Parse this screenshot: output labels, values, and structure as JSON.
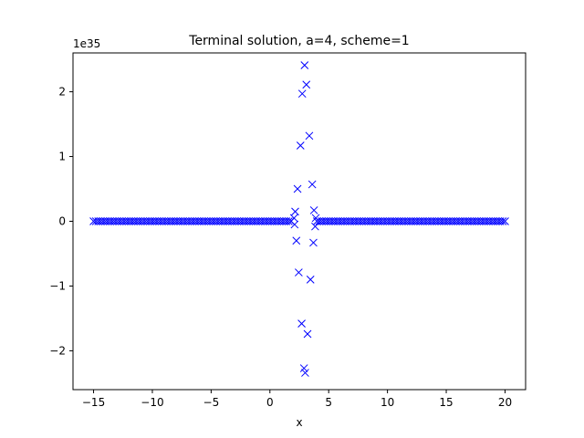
{
  "chart_data": {
    "type": "scatter",
    "title": "Terminal solution, a=4, scheme=1",
    "xlabel": "x",
    "ylabel": "",
    "offset_label": "1e35",
    "y_scale": 1e+35,
    "marker": "x",
    "color": "#0000ff",
    "xlim": [
      -16.75,
      21.75
    ],
    "ylim": [
      -2.6,
      2.6
    ],
    "grid": false,
    "legend": "none",
    "xticks": [
      -15,
      -10,
      -5,
      0,
      5,
      10,
      15,
      20
    ],
    "xtick_labels": [
      "−15",
      "−10",
      "−5",
      "0",
      "5",
      "10",
      "15",
      "20"
    ],
    "yticks": [
      -2,
      -1,
      0,
      1,
      2
    ],
    "ytick_labels": [
      "−2",
      "−1",
      "0",
      "1",
      "2"
    ],
    "baseline": {
      "left": {
        "x_start": -15.0,
        "x_end": 1.9,
        "y": 0
      },
      "right": {
        "x_start": 4.0,
        "x_end": 20.0,
        "y": 0
      }
    },
    "points": [
      {
        "x": 2.95,
        "y": 2.41
      },
      {
        "x": 3.1,
        "y": 2.11
      },
      {
        "x": 2.75,
        "y": 1.97
      },
      {
        "x": 3.35,
        "y": 1.32
      },
      {
        "x": 2.6,
        "y": 1.17
      },
      {
        "x": 3.6,
        "y": 0.57
      },
      {
        "x": 2.35,
        "y": 0.5
      },
      {
        "x": 3.75,
        "y": 0.17
      },
      {
        "x": 2.15,
        "y": 0.15
      },
      {
        "x": 2.05,
        "y": 0.05
      },
      {
        "x": 3.9,
        "y": 0.05
      },
      {
        "x": 3.85,
        "y": -0.08
      },
      {
        "x": 2.1,
        "y": -0.05
      },
      {
        "x": 2.25,
        "y": -0.3
      },
      {
        "x": 3.7,
        "y": -0.33
      },
      {
        "x": 2.45,
        "y": -0.79
      },
      {
        "x": 3.45,
        "y": -0.9
      },
      {
        "x": 2.7,
        "y": -1.58
      },
      {
        "x": 3.2,
        "y": -1.74
      },
      {
        "x": 2.9,
        "y": -2.27
      },
      {
        "x": 3.0,
        "y": -2.34
      }
    ]
  }
}
